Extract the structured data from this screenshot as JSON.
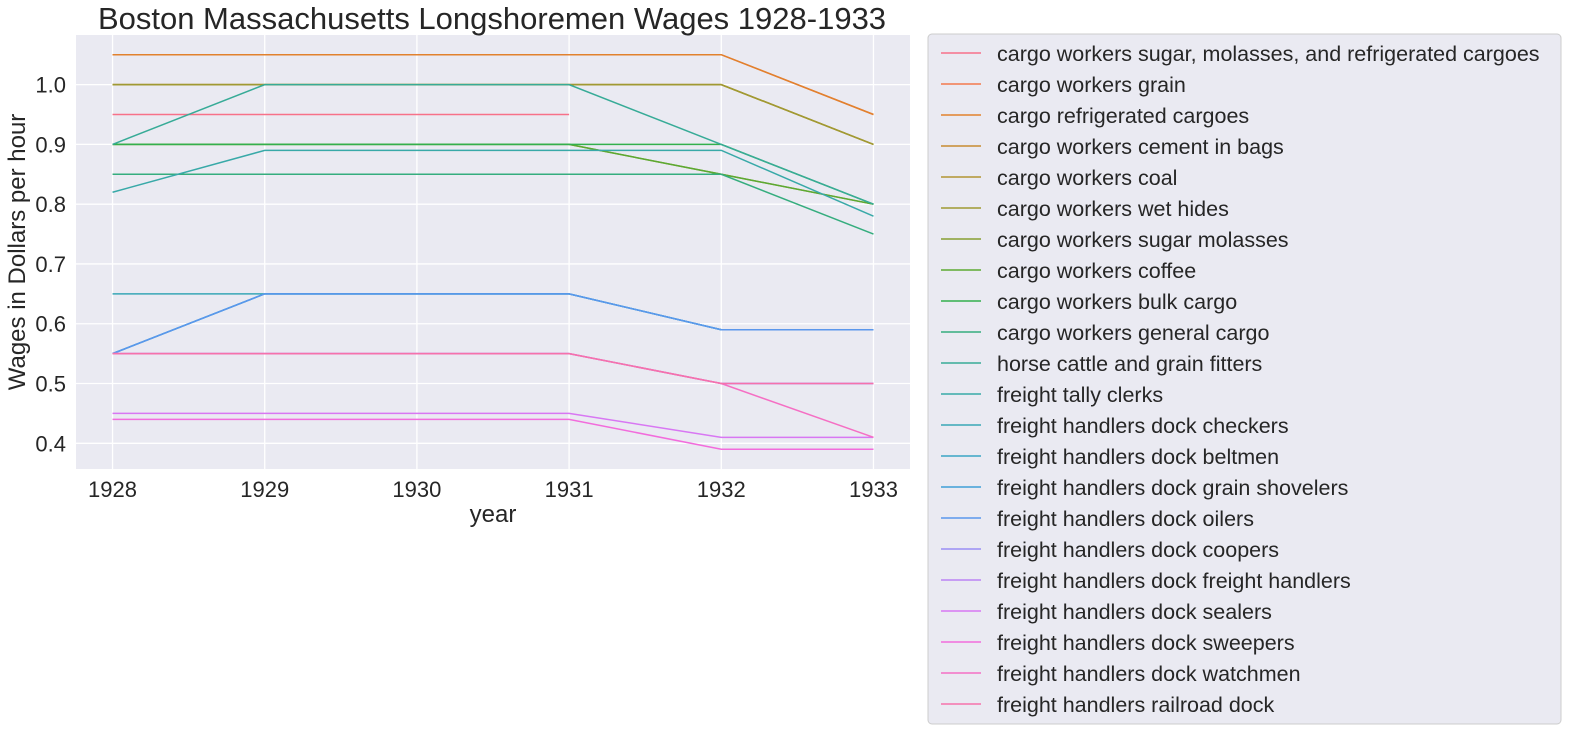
{
  "chart_data": {
    "type": "line",
    "title": "Boston Massachusetts Longshoremen Wages 1928-1933",
    "xlabel": "year",
    "ylabel": "Wages in Dollars per hour",
    "x": [
      1928,
      1929,
      1930,
      1931,
      1932,
      1933
    ],
    "x_ticks": [
      "1928",
      "1929",
      "1930",
      "1931",
      "1932",
      "1933"
    ],
    "y_ticks": [
      "0.4",
      "0.5",
      "0.6",
      "0.7",
      "0.8",
      "0.9",
      "1.0"
    ],
    "xlim": [
      1927.76,
      1933.24
    ],
    "ylim": [
      0.357,
      1.083
    ],
    "grid": true,
    "legend_position": "outside-right",
    "series": [
      {
        "name": "cargo workers sugar, molasses, and refrigerated cargoes",
        "color": "#f77189",
        "values": [
          0.95,
          0.95,
          0.95,
          0.95,
          null,
          null
        ]
      },
      {
        "name": "cargo workers grain",
        "color": "#f3794d",
        "values": [
          1.05,
          1.05,
          1.05,
          1.05,
          1.05,
          0.95
        ]
      },
      {
        "name": "cargo refrigerated cargoes",
        "color": "#e1812d",
        "values": [
          1.05,
          1.05,
          1.05,
          1.05,
          1.05,
          0.95
        ]
      },
      {
        "name": "cargo workers cement in bags",
        "color": "#c78b31",
        "values": [
          1.0,
          1.0,
          1.0,
          1.0,
          1.0,
          0.9
        ]
      },
      {
        "name": "cargo workers coal",
        "color": "#b29432",
        "values": [
          1.0,
          1.0,
          1.0,
          1.0,
          1.0,
          0.9
        ]
      },
      {
        "name": "cargo workers wet hides",
        "color": "#9f9a33",
        "values": [
          1.0,
          1.0,
          1.0,
          1.0,
          1.0,
          0.9
        ]
      },
      {
        "name": "cargo workers sugar molasses",
        "color": "#88a032",
        "values": [
          0.9,
          0.9,
          0.9,
          0.9,
          0.85,
          0.8
        ]
      },
      {
        "name": "cargo workers coffee",
        "color": "#5ca932",
        "values": [
          0.9,
          0.9,
          0.9,
          0.9,
          0.85,
          0.8
        ]
      },
      {
        "name": "cargo workers bulk cargo",
        "color": "#33b04d",
        "values": [
          0.9,
          0.9,
          0.9,
          0.9,
          0.9,
          0.8
        ]
      },
      {
        "name": "cargo workers general cargo",
        "color": "#35ad7e",
        "values": [
          0.85,
          0.85,
          0.85,
          0.85,
          0.85,
          0.75
        ]
      },
      {
        "name": "horse cattle and grain fitters",
        "color": "#37ab97",
        "values": [
          0.9,
          1.0,
          1.0,
          1.0,
          0.9,
          0.8
        ]
      },
      {
        "name": "freight tally clerks",
        "color": "#38a9a8",
        "values": [
          0.82,
          0.89,
          0.89,
          0.89,
          0.89,
          0.78
        ]
      },
      {
        "name": "freight handlers dock checkers",
        "color": "#39a7b6",
        "values": [
          0.65,
          0.65,
          0.65,
          0.65,
          0.59,
          0.59
        ]
      },
      {
        "name": "freight handlers dock beltmen",
        "color": "#3ba4c5",
        "values": [
          0.55,
          0.65,
          0.65,
          0.65,
          0.59,
          0.59
        ]
      },
      {
        "name": "freight handlers dock grain shovelers",
        "color": "#40a0d8",
        "values": [
          0.55,
          0.65,
          0.65,
          0.65,
          0.59,
          0.59
        ]
      },
      {
        "name": "freight handlers dock oilers",
        "color": "#5b97ec",
        "values": [
          0.55,
          0.65,
          0.65,
          0.65,
          0.59,
          0.59
        ]
      },
      {
        "name": "freight handlers dock coopers",
        "color": "#9a8ef4",
        "values": [
          0.55,
          0.55,
          0.55,
          0.55,
          0.5,
          0.5
        ]
      },
      {
        "name": "freight handlers dock freight handlers",
        "color": "#bb83f4",
        "values": [
          0.55,
          0.55,
          0.55,
          0.55,
          0.5,
          0.5
        ]
      },
      {
        "name": "freight handlers dock sealers",
        "color": "#d877f3",
        "values": [
          0.45,
          0.45,
          0.45,
          0.45,
          0.41,
          0.41
        ]
      },
      {
        "name": "freight handlers dock sweepers",
        "color": "#f26cdc",
        "values": [
          0.44,
          0.44,
          0.44,
          0.44,
          0.39,
          0.39
        ]
      },
      {
        "name": "freight handlers dock watchmen",
        "color": "#f56fc4",
        "values": [
          0.55,
          0.55,
          0.55,
          0.55,
          0.5,
          0.41
        ]
      },
      {
        "name": "freight handlers railroad dock",
        "color": "#f672ab",
        "values": [
          0.55,
          0.55,
          0.55,
          0.55,
          0.5,
          0.5
        ]
      }
    ]
  }
}
